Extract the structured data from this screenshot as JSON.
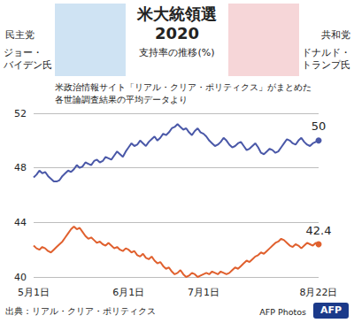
{
  "chart_data": {
    "type": "line",
    "title_lines": [
      "米大統領選",
      "2020"
    ],
    "subtitle": "支持率の推移(%)",
    "note_lines": [
      "米政治情報サイト「リアル・クリア・ポリティクス」がまとめた",
      "各世論調査結果の平均データより"
    ],
    "source": "出典：リアル・クリア・ポリティクス",
    "credit": "AFP Photos",
    "logo": "AFP",
    "categories": [
      "5月1日",
      null,
      null,
      null,
      null,
      null,
      null,
      null,
      null,
      null,
      null,
      null,
      null,
      null,
      null,
      null,
      null,
      null,
      null,
      null,
      null,
      null,
      null,
      null,
      null,
      null,
      null,
      null,
      null,
      null,
      null,
      null,
      null,
      "6月1日",
      null,
      null,
      null,
      null,
      null,
      null,
      null,
      null,
      null,
      null,
      null,
      null,
      null,
      null,
      null,
      null,
      null,
      null,
      null,
      null,
      null,
      null,
      null,
      null,
      null,
      "7月1日",
      null,
      null,
      null,
      null,
      null,
      null,
      null,
      null,
      null,
      null,
      null,
      null,
      null,
      null,
      null,
      null,
      null,
      null,
      null,
      null,
      null,
      null,
      null,
      null,
      null,
      null,
      null,
      null,
      null,
      null,
      null,
      null,
      null,
      null,
      null,
      null,
      null,
      null,
      null,
      "8月22日"
    ],
    "series": [
      {
        "party": "民主党",
        "name_lines": [
          "ジョー・",
          "バイデン氏"
        ],
        "color": "#4a58a8",
        "end_label": "50",
        "values": [
          47.3,
          47.5,
          47.8,
          47.6,
          47.7,
          47.4,
          47.2,
          47.0,
          47.0,
          47.1,
          47.4,
          47.6,
          47.8,
          47.7,
          47.9,
          48.2,
          48.0,
          48.1,
          48.4,
          48.3,
          48.2,
          48.5,
          48.6,
          48.4,
          48.5,
          48.8,
          48.7,
          48.6,
          48.9,
          49.2,
          49.0,
          48.8,
          49.2,
          49.5,
          49.8,
          49.6,
          49.7,
          50.0,
          49.8,
          49.6,
          49.9,
          50.1,
          50.3,
          50.0,
          50.2,
          50.5,
          50.4,
          50.6,
          50.9,
          51.0,
          51.2,
          51.0,
          50.8,
          50.9,
          50.6,
          50.4,
          50.7,
          50.9,
          50.6,
          50.5,
          50.3,
          50.0,
          49.8,
          49.6,
          49.7,
          49.9,
          50.2,
          50.0,
          49.7,
          49.5,
          49.6,
          49.8,
          49.9,
          49.6,
          49.3,
          49.4,
          49.6,
          49.8,
          49.5,
          49.1,
          49.0,
          49.2,
          49.4,
          49.3,
          49.1,
          49.2,
          49.5,
          49.8,
          50.1,
          50.0,
          49.8,
          49.7,
          50.0,
          50.2,
          49.9,
          49.7,
          49.6,
          49.8,
          49.9,
          50.0
        ]
      },
      {
        "party": "共和党",
        "name_lines": [
          "ドナルド・",
          "トランプ氏"
        ],
        "color": "#e0602e",
        "end_label": "42.4",
        "values": [
          42.3,
          42.1,
          42.0,
          42.2,
          42.1,
          41.9,
          41.8,
          42.0,
          42.2,
          42.4,
          42.6,
          42.9,
          43.2,
          43.5,
          43.7,
          43.5,
          43.6,
          43.3,
          43.0,
          42.8,
          42.9,
          42.7,
          42.5,
          42.6,
          42.4,
          42.3,
          42.5,
          42.3,
          42.1,
          42.2,
          42.0,
          41.9,
          42.1,
          42.0,
          41.8,
          41.9,
          41.6,
          41.5,
          41.7,
          41.4,
          41.3,
          41.5,
          41.2,
          41.0,
          41.1,
          40.8,
          40.6,
          40.7,
          40.4,
          40.2,
          40.3,
          40.5,
          40.2,
          40.0,
          40.1,
          40.3,
          40.2,
          40.0,
          40.1,
          40.2,
          40.3,
          40.2,
          40.4,
          40.3,
          40.2,
          40.4,
          40.3,
          40.2,
          40.3,
          40.5,
          40.7,
          40.6,
          40.8,
          41.0,
          41.2,
          41.1,
          41.3,
          41.5,
          41.6,
          41.8,
          41.7,
          41.9,
          42.1,
          42.3,
          42.5,
          42.6,
          42.8,
          42.7,
          42.5,
          42.3,
          42.2,
          42.4,
          42.3,
          42.1,
          42.3,
          42.5,
          42.4,
          42.3,
          42.5,
          42.4
        ]
      }
    ],
    "ylim": [
      40,
      52
    ],
    "yticks": [
      40,
      44,
      48,
      52
    ],
    "grid": true
  }
}
